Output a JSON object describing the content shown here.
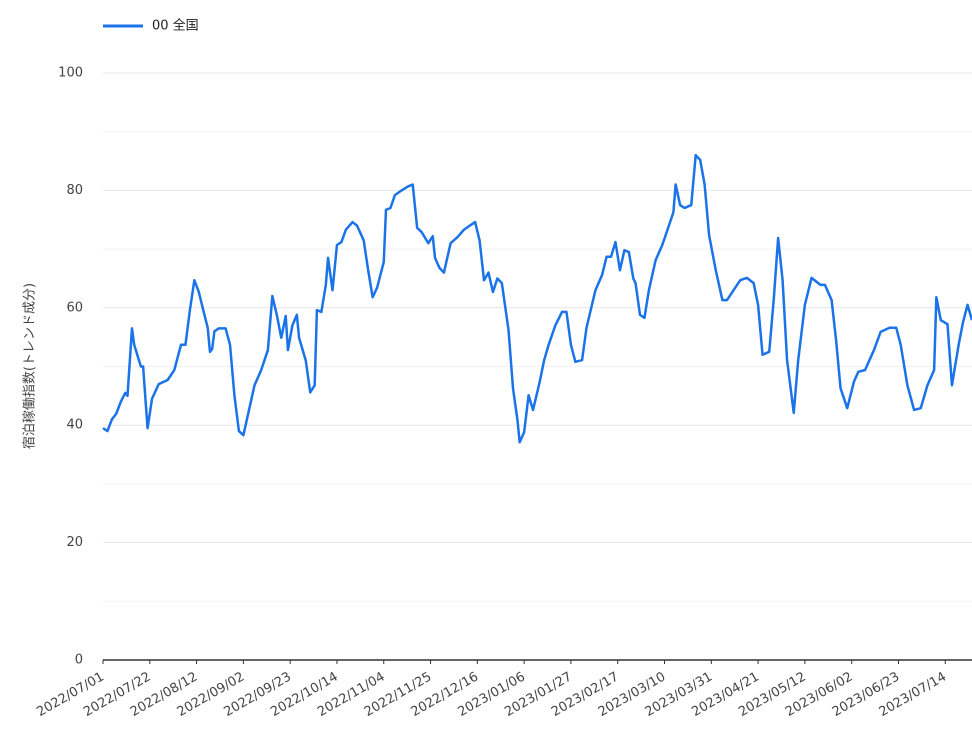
{
  "chart_data": {
    "type": "line",
    "y_label": "宿泊稼働指数(トレンド成分)",
    "x": [
      "2022/07/01",
      "2022/07/03",
      "2022/07/05",
      "2022/07/07",
      "2022/07/09",
      "2022/07/11",
      "2022/07/12",
      "2022/07/14",
      "2022/07/15",
      "2022/07/18",
      "2022/07/19",
      "2022/07/21",
      "2022/07/23",
      "2022/07/26",
      "2022/07/30",
      "2022/08/02",
      "2022/08/05",
      "2022/08/07",
      "2022/08/09",
      "2022/08/11",
      "2022/08/13",
      "2022/08/15",
      "2022/08/17",
      "2022/08/18",
      "2022/08/19",
      "2022/08/20",
      "2022/08/22",
      "2022/08/25",
      "2022/08/27",
      "2022/08/29",
      "2022/08/31",
      "2022/09/02",
      "2022/09/05",
      "2022/09/07",
      "2022/09/10",
      "2022/09/13",
      "2022/09/15",
      "2022/09/17",
      "2022/09/19",
      "2022/09/21",
      "2022/09/22",
      "2022/09/24",
      "2022/09/26",
      "2022/09/27",
      "2022/09/30",
      "2022/10/02",
      "2022/10/04",
      "2022/10/05",
      "2022/10/07",
      "2022/10/09",
      "2022/10/10",
      "2022/10/12",
      "2022/10/14",
      "2022/10/16",
      "2022/10/18",
      "2022/10/21",
      "2022/10/23",
      "2022/10/26",
      "2022/10/28",
      "2022/10/30",
      "2022/11/01",
      "2022/11/04",
      "2022/11/05",
      "2022/11/07",
      "2022/11/09",
      "2022/11/12",
      "2022/11/15",
      "2022/11/17",
      "2022/11/19",
      "2022/11/21",
      "2022/11/24",
      "2022/11/26",
      "2022/11/27",
      "2022/11/29",
      "2022/12/01",
      "2022/12/04",
      "2022/12/07",
      "2022/12/10",
      "2022/12/13",
      "2022/12/15",
      "2022/12/17",
      "2022/12/19",
      "2022/12/21",
      "2022/12/23",
      "2022/12/25",
      "2022/12/27",
      "2022/12/30",
      "2023/01/01",
      "2023/01/03",
      "2023/01/04",
      "2023/01/06",
      "2023/01/08",
      "2023/01/10",
      "2023/01/13",
      "2023/01/15",
      "2023/01/17",
      "2023/01/20",
      "2023/01/23",
      "2023/01/25",
      "2023/01/27",
      "2023/01/29",
      "2023/02/01",
      "2023/02/03",
      "2023/02/07",
      "2023/02/10",
      "2023/02/12",
      "2023/02/14",
      "2023/02/16",
      "2023/02/18",
      "2023/02/20",
      "2023/02/22",
      "2023/02/24",
      "2023/02/25",
      "2023/02/27",
      "2023/03/01",
      "2023/03/03",
      "2023/03/06",
      "2023/03/09",
      "2023/03/11",
      "2023/03/14",
      "2023/03/15",
      "2023/03/17",
      "2023/03/19",
      "2023/03/22",
      "2023/03/24",
      "2023/03/26",
      "2023/03/28",
      "2023/03/30",
      "2023/04/02",
      "2023/04/05",
      "2023/04/07",
      "2023/04/10",
      "2023/04/13",
      "2023/04/16",
      "2023/04/19",
      "2023/04/21",
      "2023/04/23",
      "2023/04/26",
      "2023/04/28",
      "2023/04/30",
      "2023/05/02",
      "2023/05/04",
      "2023/05/07",
      "2023/05/09",
      "2023/05/12",
      "2023/05/15",
      "2023/05/19",
      "2023/05/21",
      "2023/05/24",
      "2023/05/26",
      "2023/05/28",
      "2023/05/31",
      "2023/06/03",
      "2023/06/05",
      "2023/06/08",
      "2023/06/12",
      "2023/06/15",
      "2023/06/19",
      "2023/06/22",
      "2023/06/24",
      "2023/06/27",
      "2023/06/30",
      "2023/07/03",
      "2023/07/06",
      "2023/07/09",
      "2023/07/10",
      "2023/07/12",
      "2023/07/15",
      "2023/07/17",
      "2023/07/20",
      "2023/07/22",
      "2023/07/24",
      "2023/07/26"
    ],
    "series": [
      {
        "name": "00 全国",
        "color": "#1a73e8",
        "values": [
          39.5,
          39,
          41,
          42,
          44,
          45.5,
          45,
          56.5,
          53.7,
          50,
          50,
          39.5,
          44.5,
          47,
          47.7,
          49.4,
          53.7,
          53.7,
          59.6,
          64.7,
          62.7,
          59.6,
          56.6,
          52.5,
          53,
          56,
          56.5,
          56.5,
          53.7,
          45,
          39,
          38.3,
          43.4,
          46.8,
          49.4,
          52.8,
          62,
          58.8,
          54.9,
          58.6,
          52.8,
          57,
          58.8,
          54.9,
          51,
          45.6,
          46.8,
          59.6,
          59.3,
          63.9,
          68.5,
          63,
          70.7,
          71.2,
          73.3,
          74.6,
          74,
          71.5,
          66.4,
          61.8,
          63.4,
          67.8,
          76.7,
          77,
          79.2,
          80,
          80.7,
          81,
          73.6,
          72.9,
          71,
          72.2,
          68.5,
          66.8,
          66,
          71,
          72,
          73.3,
          74.1,
          74.6,
          71.5,
          64.7,
          66,
          62.7,
          65,
          64.2,
          56.2,
          46.3,
          40.9,
          37.1,
          38.8,
          45.1,
          42.6,
          47.4,
          51.1,
          53.7,
          57,
          59.3,
          59.3,
          53.7,
          50.8,
          51.1,
          56.6,
          63,
          65.6,
          68.7,
          68.7,
          71.2,
          66.4,
          69.8,
          69.5,
          65,
          64.2,
          58.8,
          58.3,
          63,
          68.1,
          70.7,
          72.9,
          76.3,
          81,
          77.5,
          77,
          77.5,
          86,
          85.2,
          81,
          72.4,
          66.4,
          61.3,
          61.3,
          63,
          64.7,
          65.1,
          64.2,
          60.5,
          52,
          52.5,
          61.3,
          71.9,
          64.7,
          51.1,
          42.1,
          51.1,
          60.5,
          65.1,
          63.9,
          63.9,
          61.3,
          54.5,
          46.3,
          42.9,
          47.4,
          49.1,
          49.4,
          52.8,
          55.9,
          56.6,
          56.6,
          53.7,
          46.8,
          42.6,
          42.9,
          46.8,
          49.4,
          61.8,
          57.9,
          57.2,
          46.8,
          53.7,
          57.6,
          60.5,
          57.9
        ]
      }
    ],
    "xlim": [
      "2022/07/01",
      "2023/07/26"
    ],
    "xticks": [
      "2022/07/01",
      "2022/07/22",
      "2022/08/12",
      "2022/09/02",
      "2022/09/23",
      "2022/10/14",
      "2022/11/04",
      "2022/11/25",
      "2022/12/16",
      "2023/01/06",
      "2023/01/27",
      "2023/02/17",
      "2023/03/10",
      "2023/03/31",
      "2023/04/21",
      "2023/05/12",
      "2023/06/02",
      "2023/06/23",
      "2023/07/14"
    ],
    "ylim": [
      0,
      100
    ],
    "yticks": [
      0,
      20,
      40,
      60,
      80,
      100
    ],
    "yminor": [
      10,
      30,
      50,
      70,
      90
    ],
    "grid": true,
    "legend": "top-left"
  }
}
